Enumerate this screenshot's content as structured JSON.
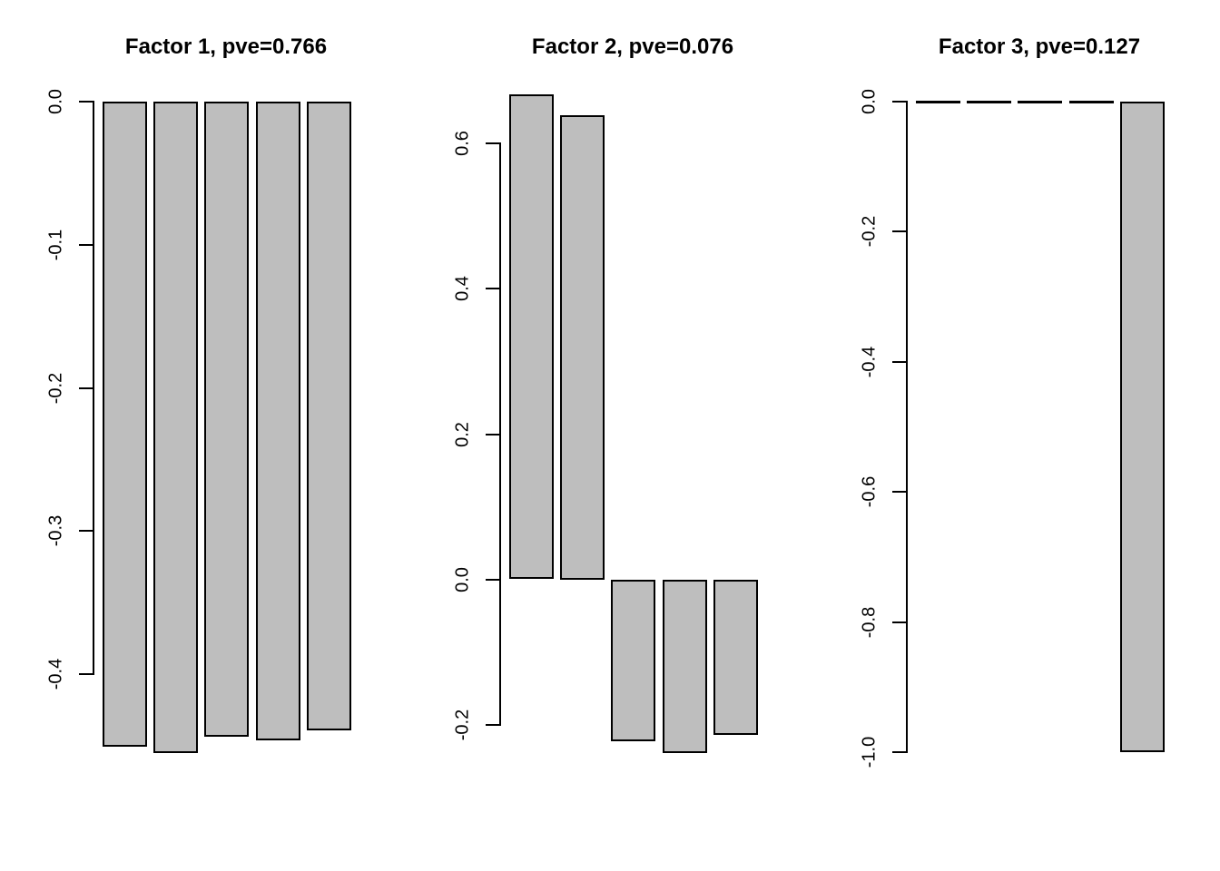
{
  "figure": {
    "background": "#ffffff",
    "text_color": "#000000",
    "description_title_row": [
      "Factor 1, pve=0.766",
      "Factor 2, pve=0.076",
      "Factor 3, pve=0.127"
    ]
  },
  "style": {
    "bar_fill": "#bebebe",
    "bar_border": "#000000",
    "axis_color": "#000000"
  },
  "chart_data": [
    {
      "type": "bar",
      "title": "Factor 1, pve=0.766",
      "factor": "Factor 1",
      "pve": 0.766,
      "categories": [
        "",
        "",
        "",
        "",
        ""
      ],
      "values": [
        -0.451,
        -0.455,
        -0.444,
        -0.446,
        -0.439
      ],
      "yticks": [
        0,
        -0.1,
        -0.2,
        -0.3,
        -0.4
      ],
      "ytick_labels": [
        "0.0",
        "-0.1",
        "-0.2",
        "-0.3",
        "-0.4"
      ],
      "ylim": [
        0.0,
        -0.46
      ],
      "xlabel": "",
      "ylabel": "",
      "grid": false,
      "legend": null
    },
    {
      "type": "bar",
      "title": "Factor 2, pve=0.076",
      "factor": "Factor 2",
      "pve": 0.076,
      "categories": [
        "",
        "",
        "",
        "",
        ""
      ],
      "values": [
        0.667,
        0.639,
        -0.222,
        -0.239,
        -0.213
      ],
      "yticks": [
        0.6,
        0.4,
        0.2,
        0,
        -0.2
      ],
      "ytick_labels": [
        "0.6",
        "0.4",
        "0.2",
        "0.0",
        "-0.2"
      ],
      "ylim": [
        0.68,
        -0.24
      ],
      "xlabel": "",
      "ylabel": "",
      "grid": false,
      "legend": null
    },
    {
      "type": "bar",
      "title": "Factor 3, pve=0.127",
      "factor": "Factor 3",
      "pve": 0.127,
      "categories": [
        "",
        "",
        "",
        "",
        ""
      ],
      "values": [
        0,
        0,
        0,
        0,
        -1.0
      ],
      "yticks": [
        0,
        -0.2,
        -0.4,
        -0.6,
        -0.8,
        -1.0
      ],
      "ytick_labels": [
        "0.0",
        "-0.2",
        "-0.4",
        "-0.6",
        "-0.8",
        "-1.0"
      ],
      "ylim": [
        0.0,
        -1.0
      ],
      "xlabel": "",
      "ylabel": "",
      "grid": false,
      "legend": null
    }
  ]
}
